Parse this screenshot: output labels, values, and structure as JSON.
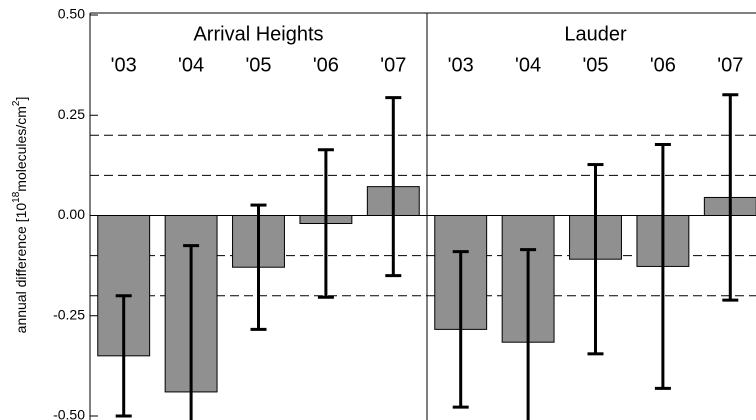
{
  "chart_data": [
    {
      "type": "bar",
      "title": "Arrival Heights",
      "categories": [
        "'03",
        "'04",
        "'05",
        "'06",
        "'07"
      ],
      "values": [
        -0.35,
        -0.44,
        -0.129,
        -0.02,
        0.072
      ],
      "errors": [
        0.15,
        0.365,
        0.155,
        0.184,
        0.222
      ],
      "color": "#909090",
      "ylim": [
        -0.51,
        0.505
      ],
      "yticks": [
        {
          "value": 0.5,
          "label": "0.50"
        },
        {
          "value": 0.25,
          "label": "0.25"
        },
        {
          "value": 0,
          "label": "0.00"
        },
        {
          "value": -0.25,
          "label": "-0.25"
        },
        {
          "value": -0.5,
          "label": "-0.50"
        }
      ],
      "ylabel": [
        "annual difference [10",
        "18",
        "molecules/cm",
        "2",
        "]"
      ],
      "reference_lines": [
        0.2,
        0.1,
        -0.1,
        -0.2
      ]
    },
    {
      "type": "bar",
      "title": "Lauder",
      "categories": [
        "'03",
        "'04",
        "'05",
        "'06",
        "'07"
      ],
      "values": [
        -0.284,
        -0.316,
        -0.109,
        -0.127,
        0.045
      ],
      "errors": [
        0.194,
        0.231,
        0.236,
        0.304,
        0.256
      ],
      "color": "#909090",
      "ylim": [
        -0.51,
        0.505
      ],
      "reference_lines": [
        0.2,
        0.1,
        -0.1,
        -0.2
      ]
    }
  ]
}
